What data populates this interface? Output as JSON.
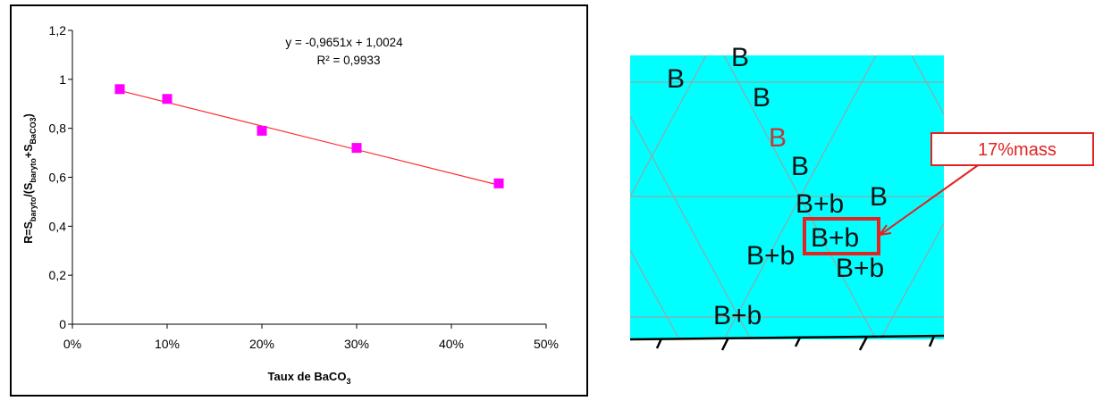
{
  "chart_data": {
    "type": "scatter",
    "x": [
      0.05,
      0.1,
      0.2,
      0.3,
      0.45
    ],
    "y": [
      0.96,
      0.92,
      0.79,
      0.72,
      0.575
    ],
    "xlim": [
      0,
      0.5
    ],
    "ylim": [
      0,
      1.2
    ],
    "x_ticks": [
      "0%",
      "10%",
      "20%",
      "30%",
      "40%",
      "50%"
    ],
    "y_ticks": [
      "0",
      "0,2",
      "0,4",
      "0,6",
      "0,8",
      "1",
      "1,2"
    ],
    "xlabel": {
      "main": "Taux de BaCO",
      "sub": "3"
    },
    "ylabel": {
      "parts": [
        {
          "t": "R=S",
          "sub": false
        },
        {
          "t": "baryto",
          "sub": true
        },
        {
          "t": "/(S",
          "sub": false
        },
        {
          "t": "baryto",
          "sub": true
        },
        {
          "t": "+S",
          "sub": false
        },
        {
          "t": "BaCO3",
          "sub": true
        },
        {
          "t": ")",
          "sub": false
        }
      ]
    },
    "trendline": {
      "slope": -0.9651,
      "intercept": 1.0024,
      "color": "#ff2a2a"
    },
    "equation": "y = -0,9651x  + 1,0024",
    "r_squared": "R² = 0,9933",
    "marker_color": "#ff00ff",
    "grid": false,
    "legend": "none"
  },
  "phase_diagram": {
    "background_color": "#00ffff",
    "grid_color": "#7fb3b3",
    "labels": [
      "B",
      "B",
      "B",
      "B",
      "B",
      "B+b",
      "B",
      "B+b",
      "B+b",
      "B+b",
      "B+b"
    ],
    "highlighted_label_color": "#c0393b",
    "callout": {
      "text": "17%mass",
      "color": "#e32222"
    }
  }
}
